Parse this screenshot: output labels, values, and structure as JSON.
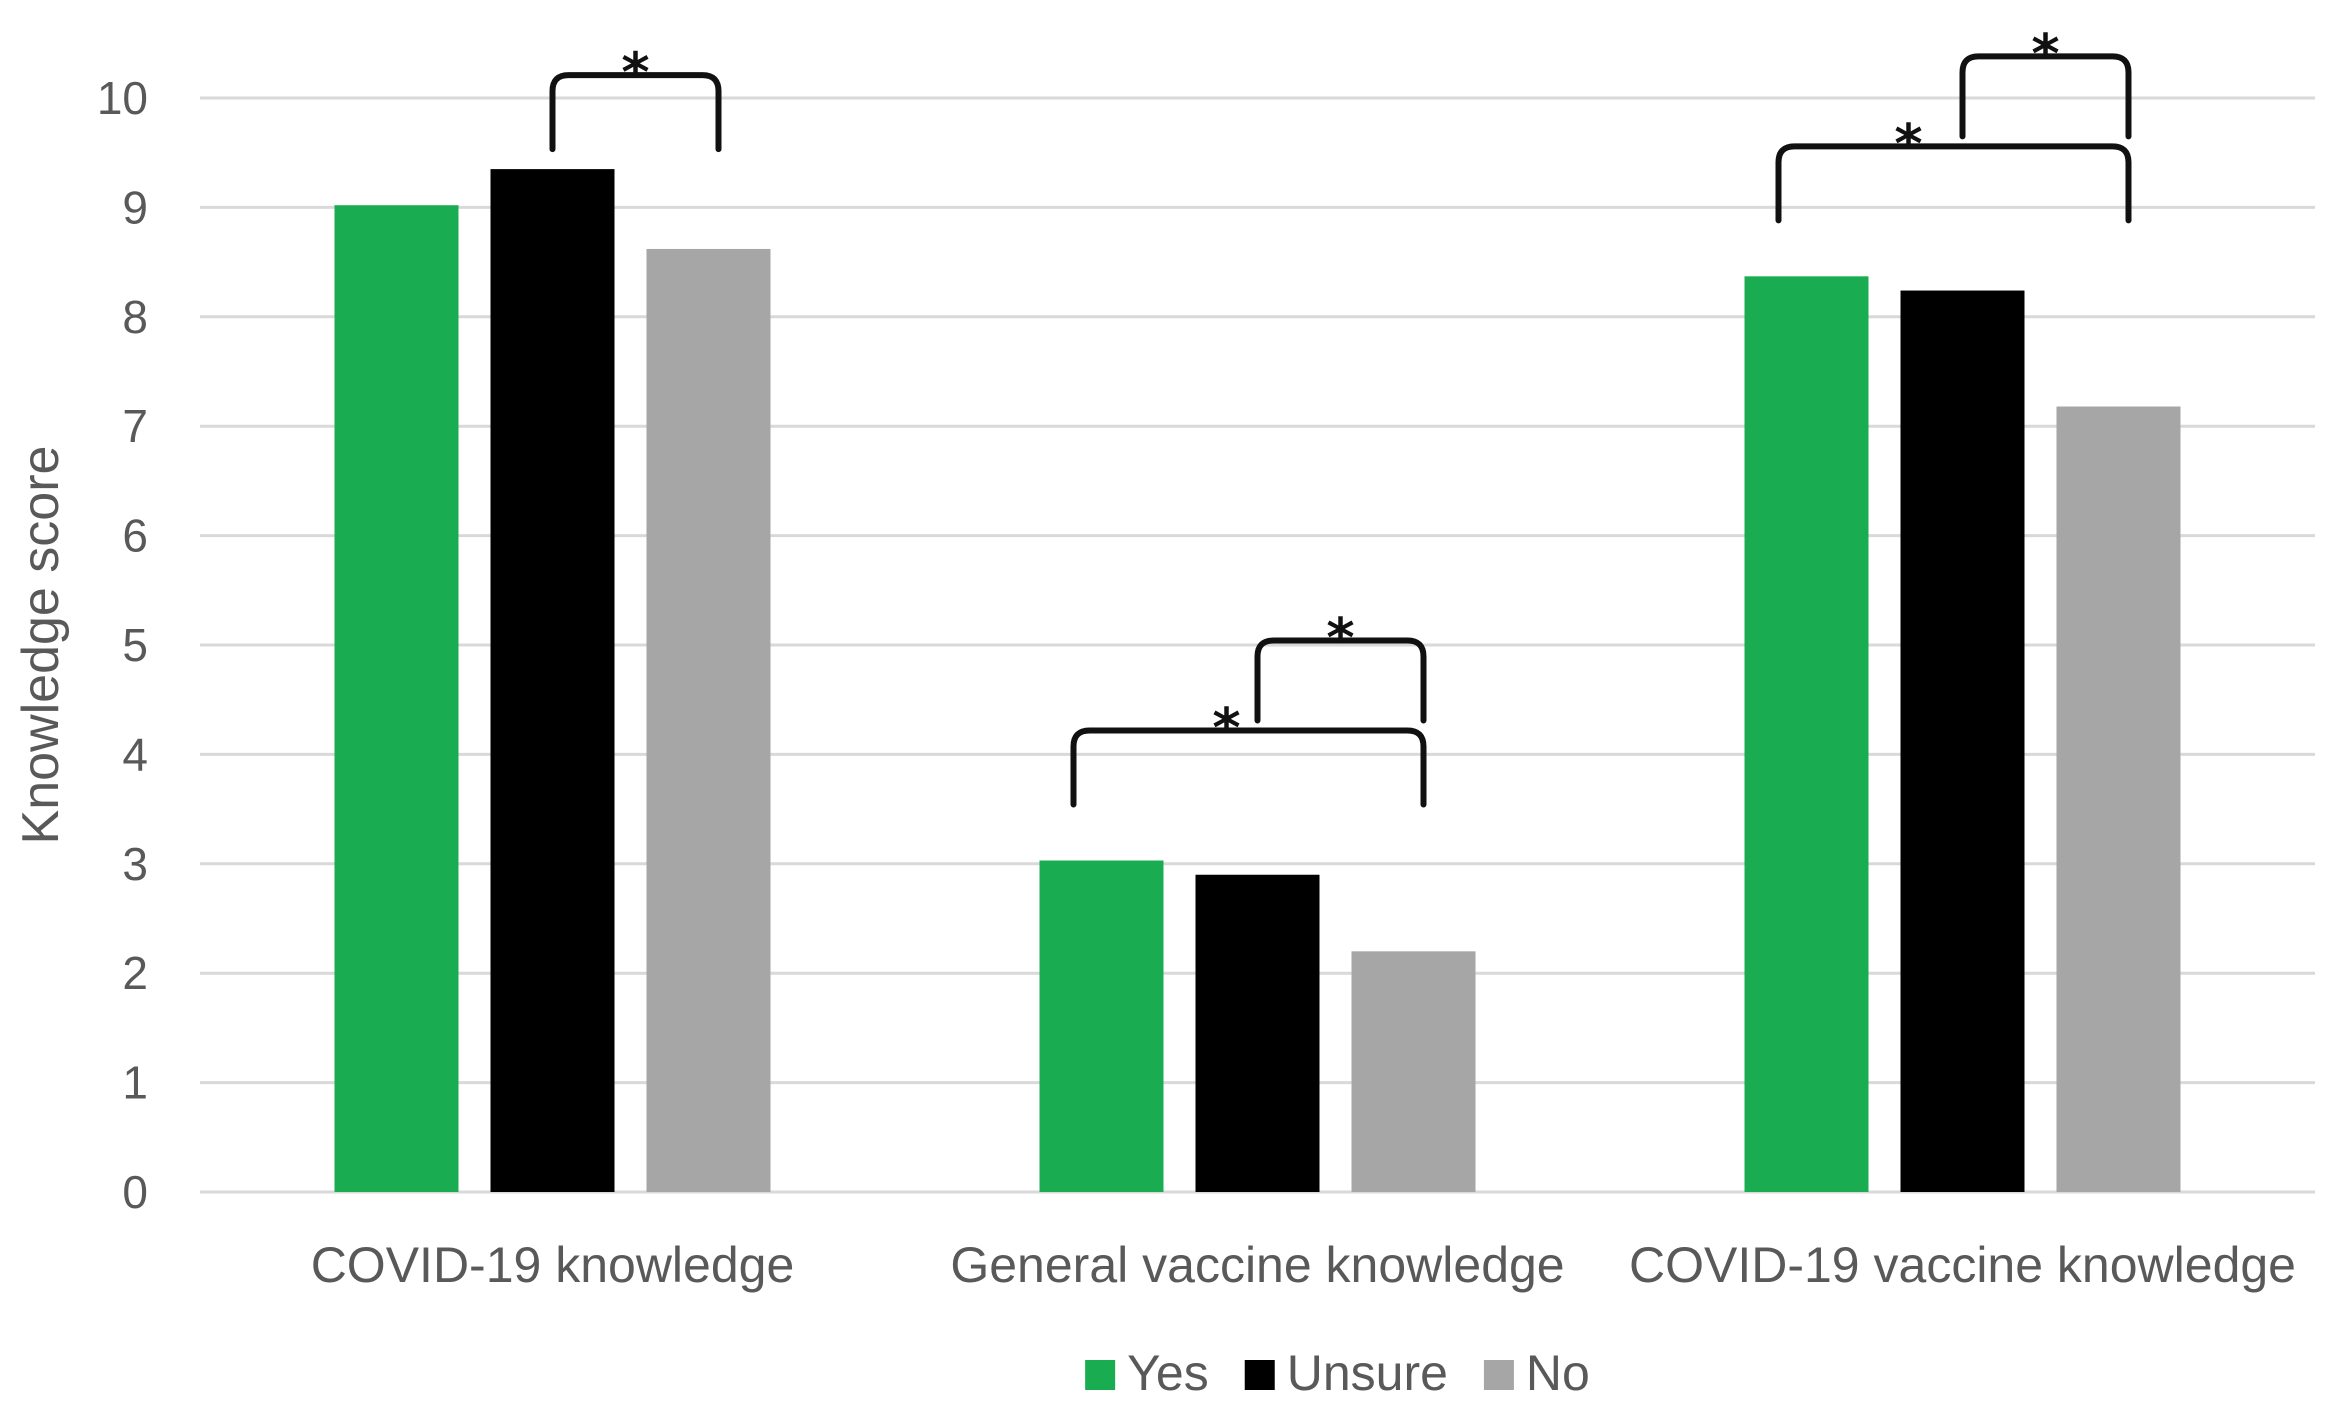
{
  "chart_data": {
    "type": "bar",
    "title": "",
    "xlabel": "",
    "ylabel": "Knowledge score",
    "ylim": [
      0,
      10
    ],
    "yticks": [
      0,
      1,
      2,
      3,
      4,
      5,
      6,
      7,
      8,
      9,
      10
    ],
    "grid": true,
    "legend_position": "bottom",
    "categories": [
      "COVID-19 knowledge",
      "General vaccine knowledge",
      "COVID-19 vaccine knowledge"
    ],
    "series": [
      {
        "name": "Yes",
        "color": "#1aac50",
        "values": [
          9.02,
          3.03,
          8.37
        ]
      },
      {
        "name": "Unsure",
        "color": "#000000",
        "values": [
          9.35,
          2.9,
          8.24
        ]
      },
      {
        "name": "No",
        "color": "#a6a6a6",
        "values": [
          8.62,
          2.2,
          7.18
        ]
      }
    ],
    "significance": [
      {
        "category": 0,
        "from_series": 1,
        "to_series": 2,
        "label": "*",
        "level": 1
      },
      {
        "category": 1,
        "from_series": 0,
        "to_series": 2,
        "label": "*",
        "level": 1
      },
      {
        "category": 1,
        "from_series": 1,
        "to_series": 2,
        "label": "*",
        "level": 2
      },
      {
        "category": 2,
        "from_series": 0,
        "to_series": 2,
        "label": "*",
        "level": 1
      },
      {
        "category": 2,
        "from_series": 1,
        "to_series": 2,
        "label": "*",
        "level": 2
      }
    ]
  }
}
